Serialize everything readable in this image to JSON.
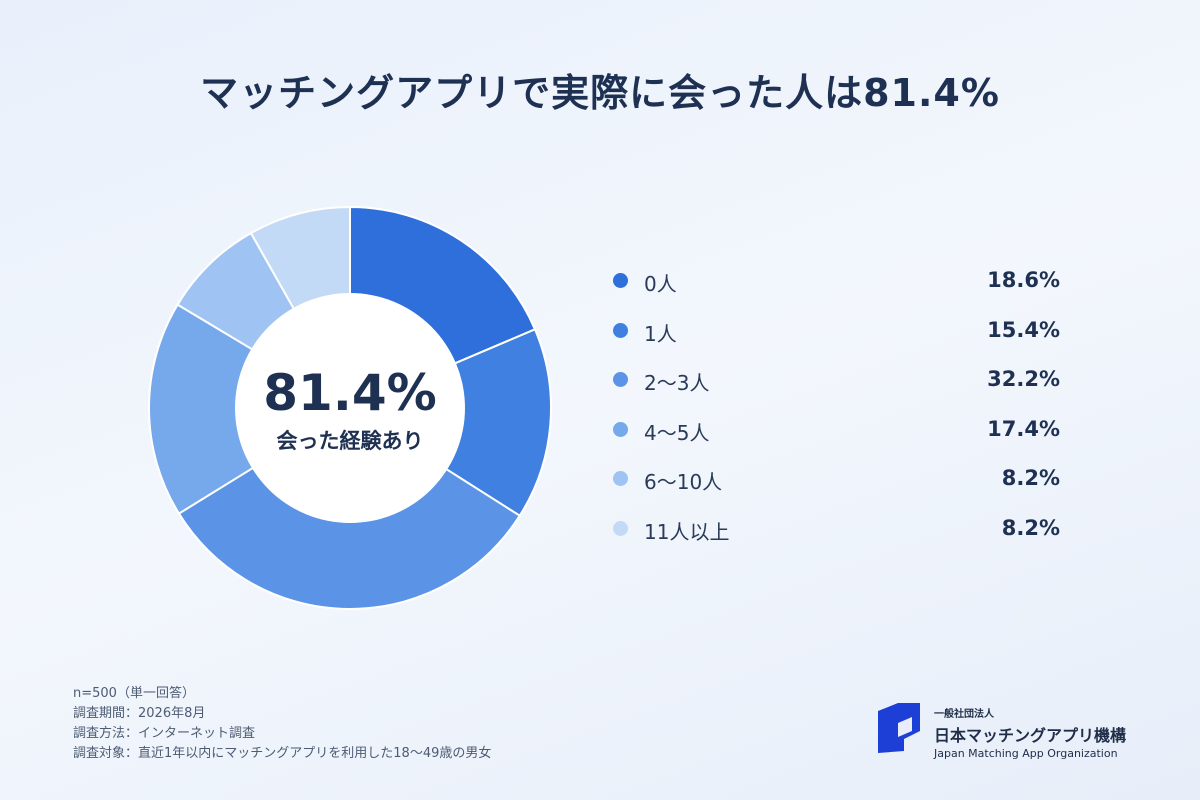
{
  "title": "マッチングアプリで実際に会った人は81.4%",
  "center": {
    "value": "81.4%",
    "label": "会った経験あり"
  },
  "chart_data": {
    "type": "pie",
    "categories": [
      "0人",
      "1人",
      "2〜3人",
      "4〜5人",
      "6〜10人",
      "11人以上"
    ],
    "values": [
      18.6,
      15.4,
      32.2,
      17.4,
      8.2,
      8.2
    ],
    "value_labels": [
      "18.6%",
      "15.4%",
      "32.2%",
      "17.4%",
      "8.2%",
      "8.2%"
    ],
    "colors": [
      "#2f6fdc",
      "#3f80e0",
      "#5b94e6",
      "#76a8ec",
      "#9fc3f3",
      "#c3daf7"
    ],
    "title": "マッチングアプリで実際に会った人は81.4%",
    "legend": "right"
  },
  "notes": [
    "n=500（単一回答）",
    "調査期間：2026年8月",
    "調査方法：インターネット調査",
    "調査対象：直近1年以内にマッチングアプリを利用した18〜49歳の男女"
  ],
  "org": {
    "small": "一般社団法人",
    "name": "日本マッチングアプリ機構",
    "english": "Japan Matching App Organization",
    "logo_color": "#1d3fd6"
  }
}
